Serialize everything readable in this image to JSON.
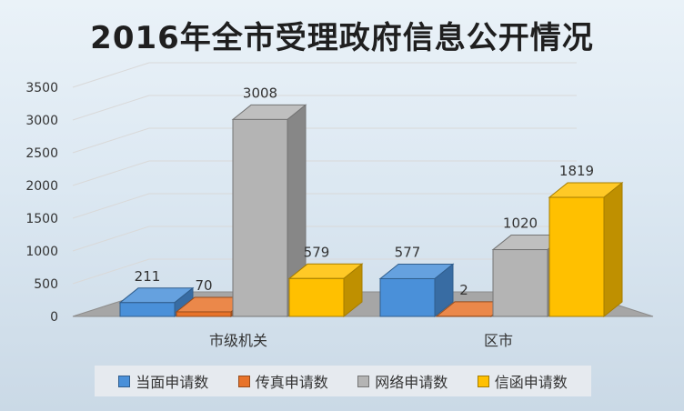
{
  "chart_data": {
    "type": "bar",
    "title": "2016年全市受理政府信息公开情况",
    "categories": [
      "市级机关",
      "区市"
    ],
    "series": [
      {
        "name": "当面申请数",
        "values": [
          211,
          577
        ],
        "color": "#4a90d9"
      },
      {
        "name": "传真申请数",
        "values": [
          70,
          2
        ],
        "color": "#e8732a"
      },
      {
        "name": "网络申请数",
        "values": [
          3008,
          1020
        ],
        "color": "#b4b4b4"
      },
      {
        "name": "信函申请数",
        "values": [
          579,
          1819
        ],
        "color": "#ffc000"
      }
    ],
    "y_ticks": [
      "0",
      "500",
      "1000",
      "1500",
      "2000",
      "2500",
      "3000",
      "3500"
    ],
    "ylim": [
      0,
      3500
    ],
    "grid": true,
    "legend_position": "bottom"
  }
}
